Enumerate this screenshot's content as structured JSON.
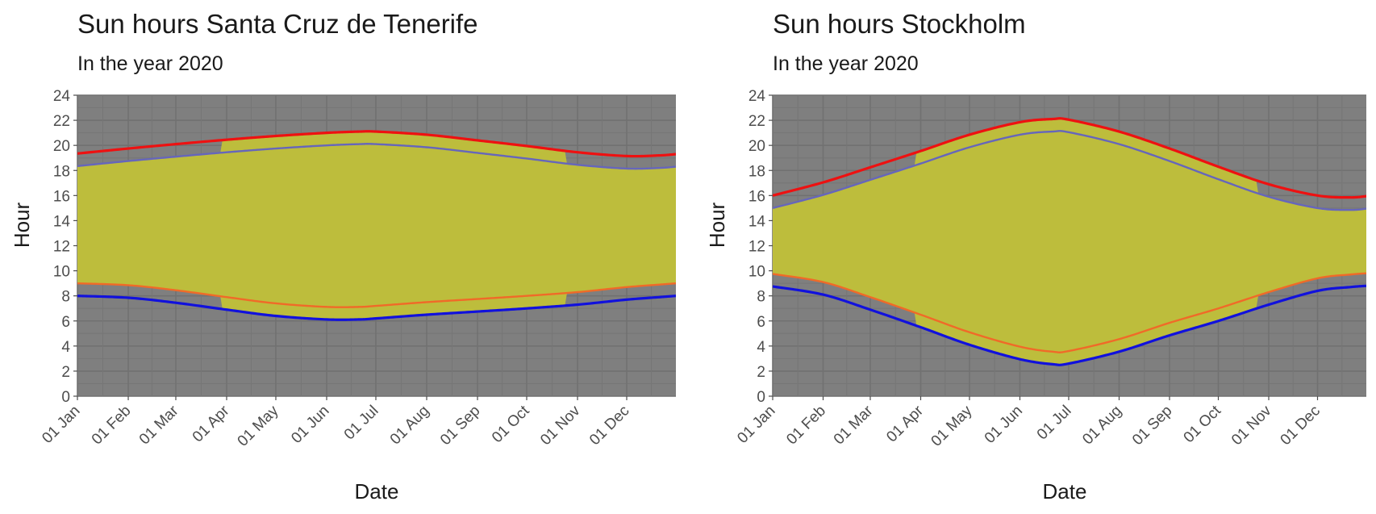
{
  "chart_data": [
    {
      "type": "area",
      "title": "Sun hours Santa Cruz de Tenerife",
      "subtitle": "In the year 2020",
      "xlabel": "Date",
      "ylabel": "Hour",
      "ylim": [
        0,
        24
      ],
      "xlim": [
        "2020-01-01",
        "2020-12-31"
      ],
      "y_ticks": [
        0,
        2,
        4,
        6,
        8,
        10,
        12,
        14,
        16,
        18,
        20,
        22,
        24
      ],
      "x_ticks": [
        "01 Jan",
        "01 Feb",
        "01 Mar",
        "01 Apr",
        "01 May",
        "01 Jun",
        "01 Jul",
        "01 Aug",
        "01 Sep",
        "01 Oct",
        "01 Nov",
        "01 Dec"
      ],
      "x_tick_dates": [
        "2020-01-01",
        "2020-02-01",
        "2020-03-01",
        "2020-04-01",
        "2020-05-01",
        "2020-06-01",
        "2020-07-01",
        "2020-08-01",
        "2020-09-01",
        "2020-10-01",
        "2020-11-01",
        "2020-12-01"
      ],
      "grid": true,
      "dst_period": [
        "2020-03-29",
        "2020-10-25"
      ],
      "x": [
        "2020-01-01",
        "2020-02-01",
        "2020-03-01",
        "2020-04-01",
        "2020-05-01",
        "2020-06-01",
        "2020-06-21",
        "2020-07-01",
        "2020-08-01",
        "2020-09-01",
        "2020-10-01",
        "2020-11-01",
        "2020-12-01",
        "2020-12-21",
        "2020-12-31"
      ],
      "series": [
        {
          "role": "sunset_dst",
          "color": "#ee1111",
          "values": [
            19.35,
            19.75,
            20.1,
            20.45,
            20.75,
            21.0,
            21.1,
            21.1,
            20.85,
            20.4,
            19.95,
            19.45,
            19.15,
            19.2,
            19.3
          ]
        },
        {
          "role": "sunset",
          "color": "#6666bb",
          "values": [
            18.35,
            18.75,
            19.1,
            19.45,
            19.75,
            20.0,
            20.1,
            20.1,
            19.85,
            19.4,
            18.95,
            18.45,
            18.15,
            18.2,
            18.3
          ]
        },
        {
          "role": "sunrise_dst",
          "color": "#f06a28",
          "values": [
            9.0,
            8.85,
            8.45,
            7.9,
            7.4,
            7.12,
            7.12,
            7.2,
            7.5,
            7.75,
            8.0,
            8.3,
            8.7,
            8.9,
            9.0
          ]
        },
        {
          "role": "sunrise",
          "color": "#1111dd",
          "values": [
            8.0,
            7.85,
            7.45,
            6.9,
            6.4,
            6.12,
            6.12,
            6.2,
            6.5,
            6.75,
            7.0,
            7.3,
            7.7,
            7.9,
            8.0
          ]
        }
      ]
    },
    {
      "type": "area",
      "title": "Sun hours Stockholm",
      "subtitle": "In the year 2020",
      "xlabel": "Date",
      "ylabel": "Hour",
      "ylim": [
        0,
        24
      ],
      "xlim": [
        "2020-01-01",
        "2020-12-31"
      ],
      "y_ticks": [
        0,
        2,
        4,
        6,
        8,
        10,
        12,
        14,
        16,
        18,
        20,
        22,
        24
      ],
      "x_ticks": [
        "01 Jan",
        "01 Feb",
        "01 Mar",
        "01 Apr",
        "01 May",
        "01 Jun",
        "01 Jul",
        "01 Aug",
        "01 Sep",
        "01 Oct",
        "01 Nov",
        "01 Dec"
      ],
      "x_tick_dates": [
        "2020-01-01",
        "2020-02-01",
        "2020-03-01",
        "2020-04-01",
        "2020-05-01",
        "2020-06-01",
        "2020-07-01",
        "2020-08-01",
        "2020-09-01",
        "2020-10-01",
        "2020-11-01",
        "2020-12-01"
      ],
      "grid": true,
      "dst_period": [
        "2020-03-29",
        "2020-10-25"
      ],
      "x": [
        "2020-01-01",
        "2020-02-01",
        "2020-03-01",
        "2020-04-01",
        "2020-05-01",
        "2020-06-01",
        "2020-06-21",
        "2020-07-01",
        "2020-08-01",
        "2020-09-01",
        "2020-10-01",
        "2020-11-01",
        "2020-12-01",
        "2020-12-21",
        "2020-12-31"
      ],
      "series": [
        {
          "role": "sunset_dst",
          "color": "#ee1111",
          "values": [
            16.0,
            17.05,
            18.25,
            19.55,
            20.85,
            21.85,
            22.1,
            22.05,
            21.1,
            19.75,
            18.3,
            16.9,
            16.0,
            15.85,
            15.95
          ]
        },
        {
          "role": "sunset",
          "color": "#6666bb",
          "values": [
            15.0,
            16.05,
            17.25,
            18.55,
            19.85,
            20.85,
            21.1,
            21.05,
            20.1,
            18.75,
            17.3,
            15.9,
            15.0,
            14.85,
            14.95
          ]
        },
        {
          "role": "sunrise_dst",
          "color": "#f06a28",
          "values": [
            9.75,
            9.1,
            7.9,
            6.5,
            5.1,
            3.95,
            3.55,
            3.6,
            4.55,
            5.85,
            7.0,
            8.3,
            9.4,
            9.7,
            9.8
          ]
        },
        {
          "role": "sunrise",
          "color": "#1111dd",
          "values": [
            8.75,
            8.1,
            6.9,
            5.5,
            4.1,
            2.95,
            2.55,
            2.6,
            3.55,
            4.85,
            6.0,
            7.3,
            8.4,
            8.7,
            8.8
          ]
        }
      ]
    }
  ]
}
